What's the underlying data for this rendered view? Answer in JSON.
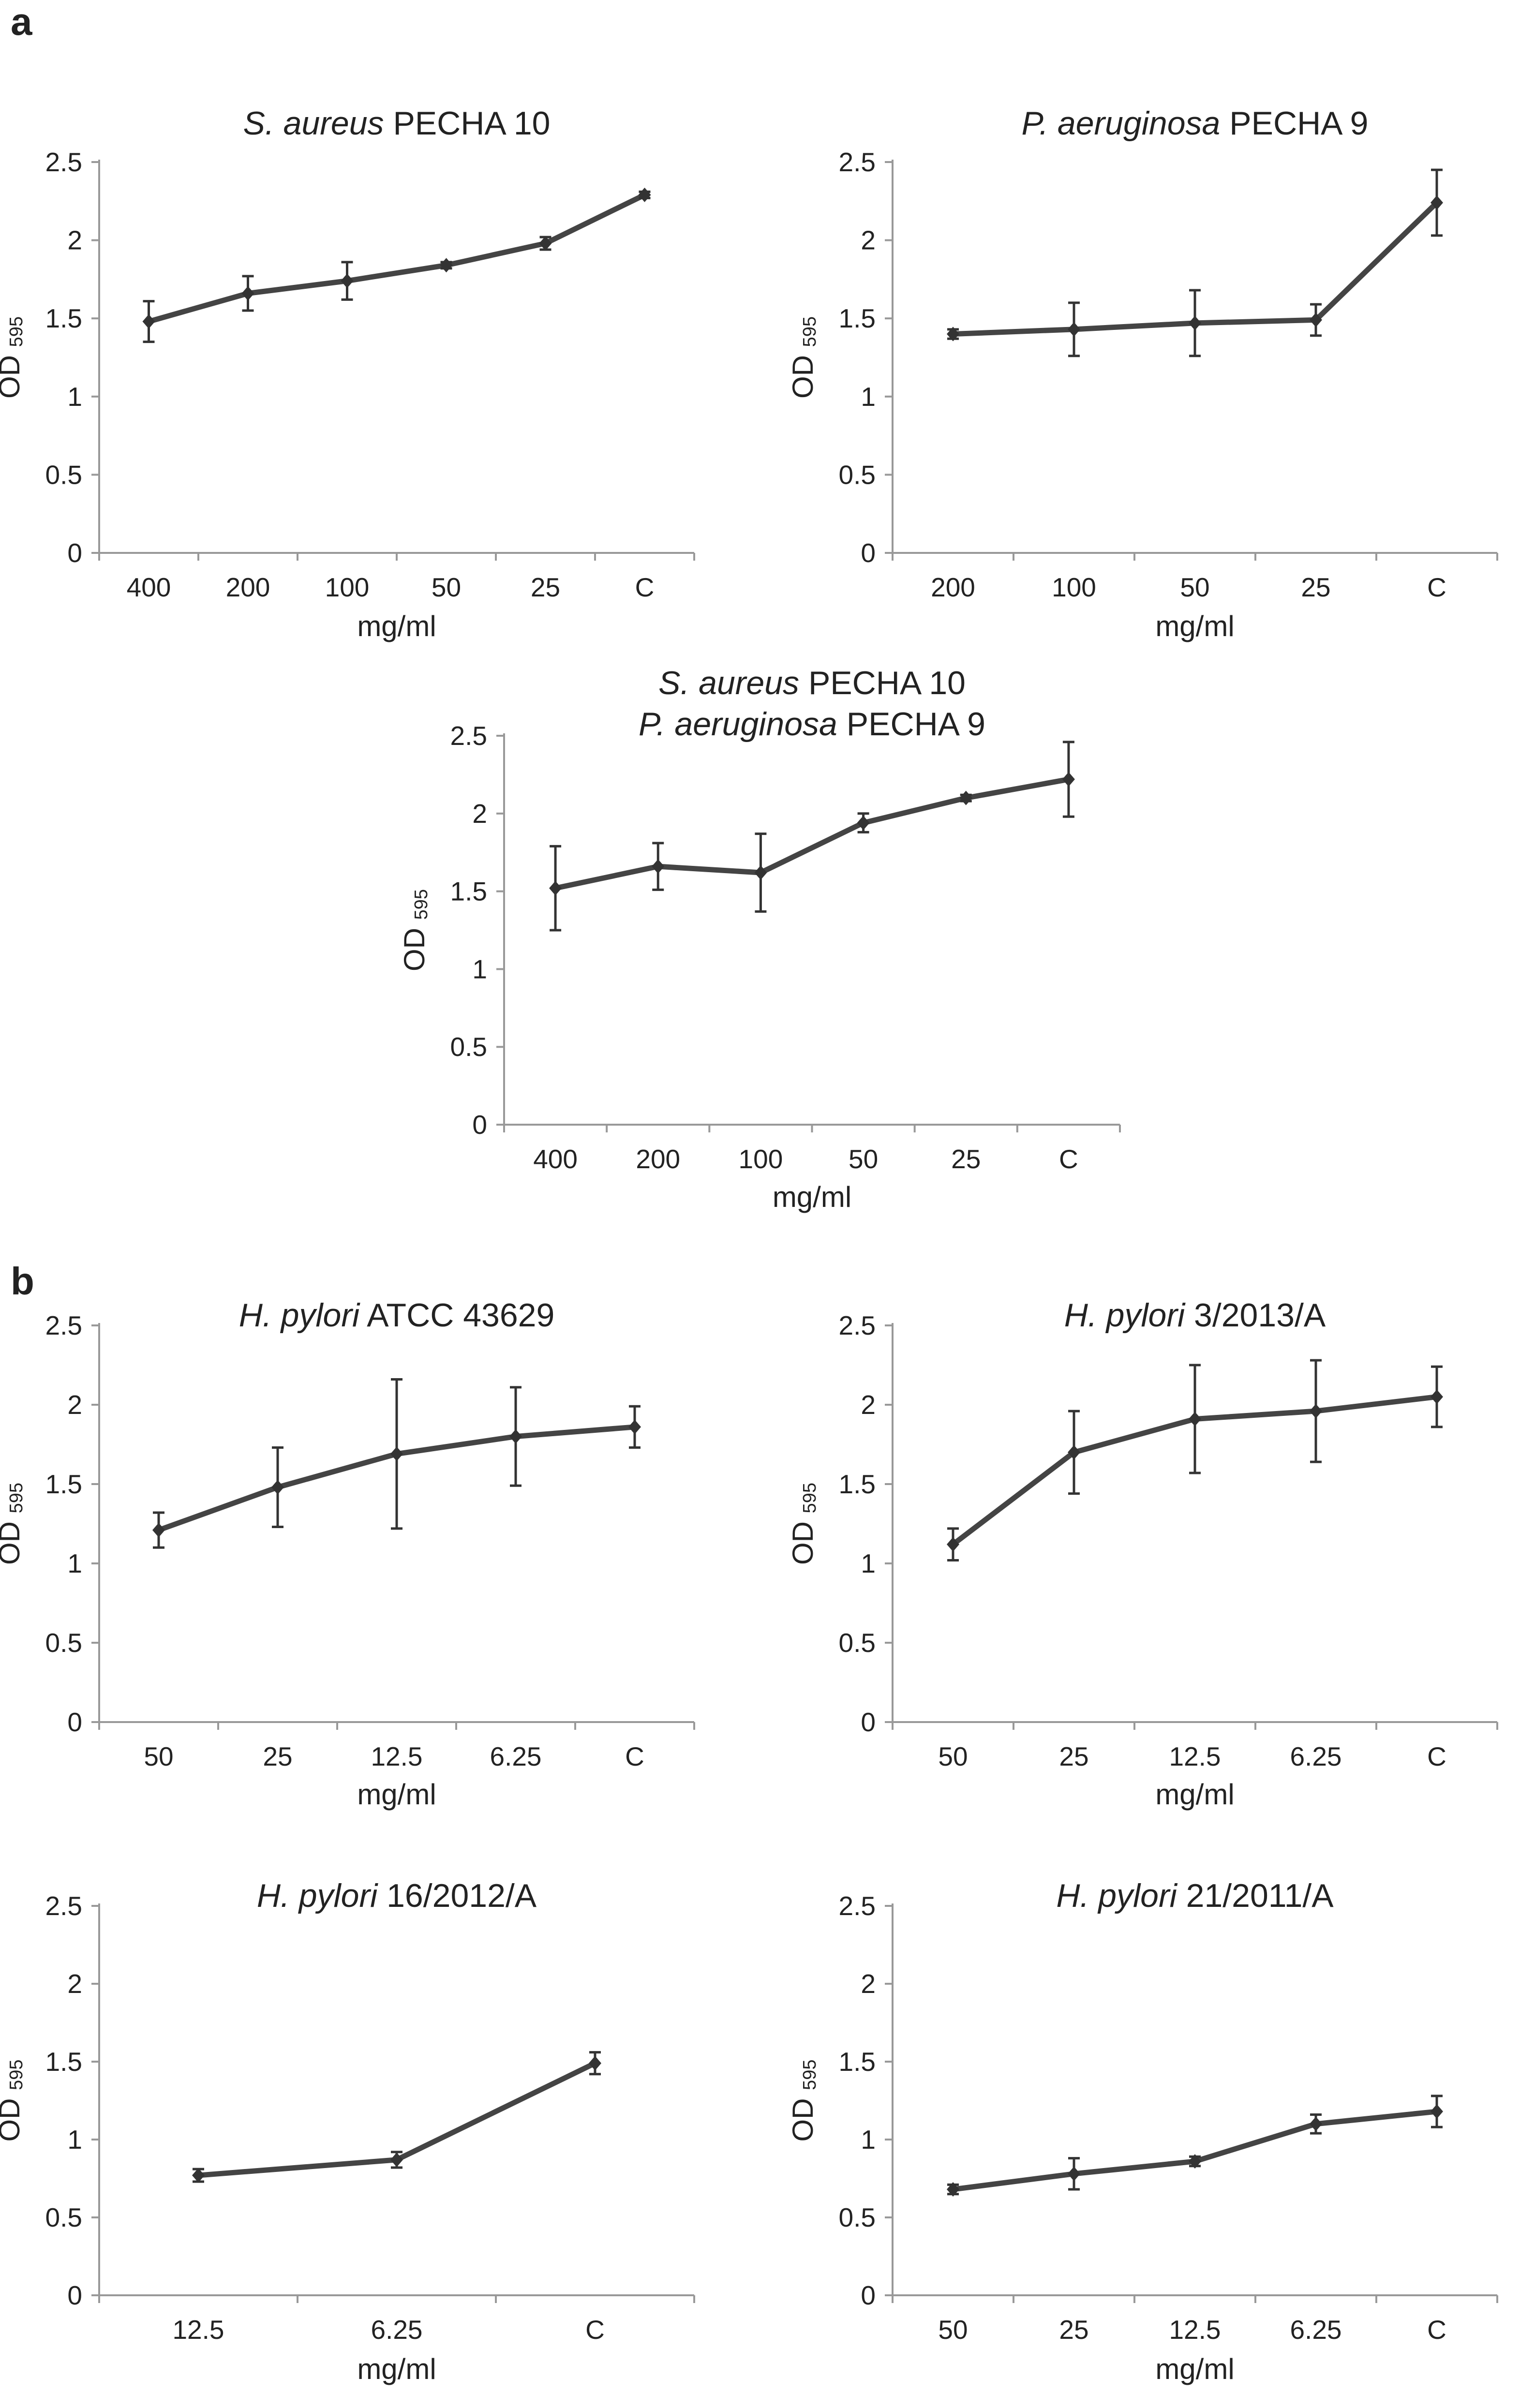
{
  "panels": [
    "a",
    "b"
  ],
  "chart_data": [
    {
      "type": "line",
      "panel": "a",
      "title_italic": "S. aureus",
      "title_rest": " PECHA 10",
      "xlabel": "mg/ml",
      "ylabel": "OD",
      "ylabel_sub": "595",
      "ylim": [
        0,
        2.5
      ],
      "yticks": [
        "0",
        "0.5",
        "1",
        "1.5",
        "2",
        "2.5"
      ],
      "categories": [
        "400",
        "200",
        "100",
        "50",
        "25",
        "C"
      ],
      "values": [
        1.48,
        1.66,
        1.74,
        1.84,
        1.98,
        2.29
      ],
      "errors": [
        0.13,
        0.11,
        0.12,
        0.02,
        0.04,
        0.02
      ]
    },
    {
      "type": "line",
      "panel": "a",
      "title_italic": "P. aeruginosa",
      "title_rest": " PECHA 9",
      "xlabel": "mg/ml",
      "ylabel": "OD",
      "ylabel_sub": "595",
      "ylim": [
        0,
        2.5
      ],
      "yticks": [
        "0",
        "0.5",
        "1",
        "1.5",
        "2",
        "2.5"
      ],
      "categories": [
        "200",
        "100",
        "50",
        "25",
        "C"
      ],
      "values": [
        1.4,
        1.43,
        1.47,
        1.49,
        2.24
      ],
      "errors": [
        0.03,
        0.17,
        0.21,
        0.1,
        0.21
      ]
    },
    {
      "type": "line",
      "panel": "a",
      "title_lines": [
        {
          "italic": "S. aureus",
          "rest": " PECHA 10"
        },
        {
          "italic": "P. aeruginosa",
          "rest": " PECHA 9"
        }
      ],
      "xlabel": "mg/ml",
      "ylabel": "OD",
      "ylabel_sub": "595",
      "ylim": [
        0,
        2.5
      ],
      "yticks": [
        "0",
        "0.5",
        "1",
        "1.5",
        "2",
        "2.5"
      ],
      "categories": [
        "400",
        "200",
        "100",
        "50",
        "25",
        "C"
      ],
      "values": [
        1.52,
        1.66,
        1.62,
        1.94,
        2.1,
        2.22
      ],
      "errors": [
        0.27,
        0.15,
        0.25,
        0.06,
        0.02,
        0.24
      ]
    },
    {
      "type": "line",
      "panel": "b",
      "title_italic": "H. pylori",
      "title_rest": " ATCC 43629",
      "xlabel": "mg/ml",
      "ylabel": "OD",
      "ylabel_sub": "595",
      "ylim": [
        0,
        2.5
      ],
      "yticks": [
        "0",
        "0.5",
        "1",
        "1.5",
        "2",
        "2.5"
      ],
      "categories": [
        "50",
        "25",
        "12.5",
        "6.25",
        "C"
      ],
      "values": [
        1.21,
        1.48,
        1.69,
        1.8,
        1.86
      ],
      "errors": [
        0.11,
        0.25,
        0.47,
        0.31,
        0.13
      ]
    },
    {
      "type": "line",
      "panel": "b",
      "title_italic": "H. pylori",
      "title_rest": " 3/2013/A",
      "xlabel": "mg/ml",
      "ylabel": "OD",
      "ylabel_sub": "595",
      "ylim": [
        0,
        2.5
      ],
      "yticks": [
        "0",
        "0.5",
        "1",
        "1.5",
        "2",
        "2.5"
      ],
      "categories": [
        "50",
        "25",
        "12.5",
        "6.25",
        "C"
      ],
      "values": [
        1.12,
        1.7,
        1.91,
        1.96,
        2.05
      ],
      "errors": [
        0.1,
        0.26,
        0.34,
        0.32,
        0.19
      ]
    },
    {
      "type": "line",
      "panel": "b",
      "title_italic": "H. pylori",
      "title_rest": " 16/2012/A",
      "xlabel": "mg/ml",
      "ylabel": "OD",
      "ylabel_sub": "595",
      "ylim": [
        0,
        2.5
      ],
      "yticks": [
        "0",
        "0.5",
        "1",
        "1.5",
        "2",
        "2.5"
      ],
      "categories": [
        "12.5",
        "6.25",
        "C"
      ],
      "values": [
        0.77,
        0.87,
        1.49
      ],
      "errors": [
        0.04,
        0.05,
        0.07
      ]
    },
    {
      "type": "line",
      "panel": "b",
      "title_italic": "H. pylori",
      "title_rest": " 21/2011/A",
      "xlabel": "mg/ml",
      "ylabel": "OD",
      "ylabel_sub": "595",
      "ylim": [
        0,
        2.5
      ],
      "yticks": [
        "0",
        "0.5",
        "1",
        "1.5",
        "2",
        "2.5"
      ],
      "categories": [
        "50",
        "25",
        "12.5",
        "6.25",
        "C"
      ],
      "values": [
        0.68,
        0.78,
        0.86,
        1.1,
        1.18
      ],
      "errors": [
        0.03,
        0.1,
        0.03,
        0.06,
        0.1
      ]
    }
  ]
}
